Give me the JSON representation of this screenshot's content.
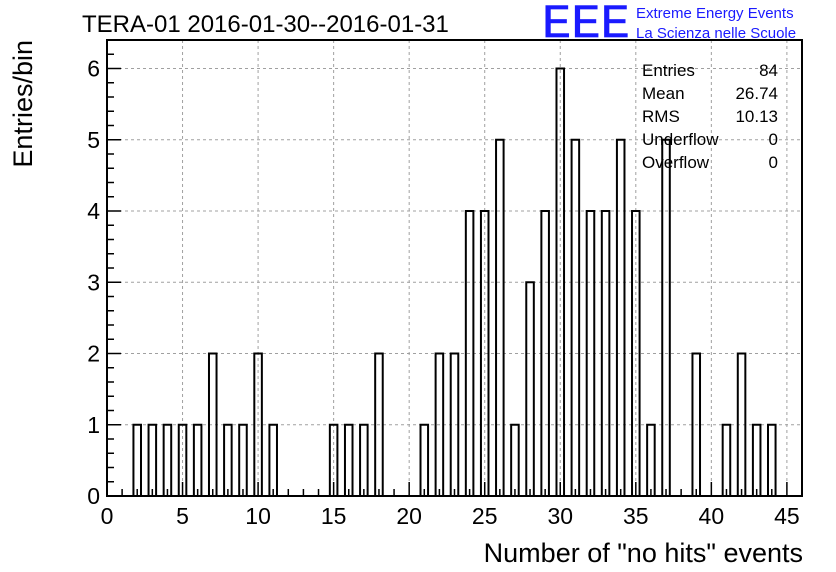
{
  "chart_data": {
    "type": "bar",
    "title": "TERA-01 2016-01-30--2016-01-31",
    "xlabel": "Number of \"no hits\" events",
    "ylabel": "Entries/bin",
    "xlim": [
      0,
      46
    ],
    "ylim": [
      0,
      6.4
    ],
    "x_ticks": [
      0,
      5,
      10,
      15,
      20,
      25,
      30,
      35,
      40,
      45
    ],
    "y_ticks": [
      0,
      1,
      2,
      3,
      4,
      5,
      6
    ],
    "grid": true,
    "bin_width": 1,
    "bins": [
      {
        "x": 2,
        "count": 1
      },
      {
        "x": 3,
        "count": 1
      },
      {
        "x": 4,
        "count": 1
      },
      {
        "x": 5,
        "count": 1
      },
      {
        "x": 6,
        "count": 1
      },
      {
        "x": 7,
        "count": 2
      },
      {
        "x": 8,
        "count": 1
      },
      {
        "x": 9,
        "count": 1
      },
      {
        "x": 10,
        "count": 2
      },
      {
        "x": 11,
        "count": 1
      },
      {
        "x": 15,
        "count": 1
      },
      {
        "x": 16,
        "count": 1
      },
      {
        "x": 17,
        "count": 1
      },
      {
        "x": 18,
        "count": 2
      },
      {
        "x": 21,
        "count": 1
      },
      {
        "x": 22,
        "count": 2
      },
      {
        "x": 23,
        "count": 2
      },
      {
        "x": 24,
        "count": 4
      },
      {
        "x": 25,
        "count": 4
      },
      {
        "x": 26,
        "count": 5
      },
      {
        "x": 27,
        "count": 1
      },
      {
        "x": 28,
        "count": 3
      },
      {
        "x": 29,
        "count": 4
      },
      {
        "x": 30,
        "count": 6
      },
      {
        "x": 31,
        "count": 5
      },
      {
        "x": 32,
        "count": 4
      },
      {
        "x": 33,
        "count": 4
      },
      {
        "x": 34,
        "count": 5
      },
      {
        "x": 35,
        "count": 4
      },
      {
        "x": 36,
        "count": 1
      },
      {
        "x": 37,
        "count": 5
      },
      {
        "x": 39,
        "count": 2
      },
      {
        "x": 41,
        "count": 1
      },
      {
        "x": 42,
        "count": 2
      },
      {
        "x": 43,
        "count": 1
      },
      {
        "x": 44,
        "count": 1
      }
    ],
    "stats": [
      {
        "label": "Entries",
        "value": "84"
      },
      {
        "label": "Mean",
        "value": "26.74"
      },
      {
        "label": "RMS",
        "value": "10.13"
      },
      {
        "label": "Underflow",
        "value": "0"
      },
      {
        "label": "Overflow",
        "value": "0"
      }
    ]
  },
  "logo": {
    "mark": "EEE",
    "line1": "Extreme Energy Events",
    "line2": "La Scienza nelle Scuole",
    "color": "#1a1aff"
  }
}
